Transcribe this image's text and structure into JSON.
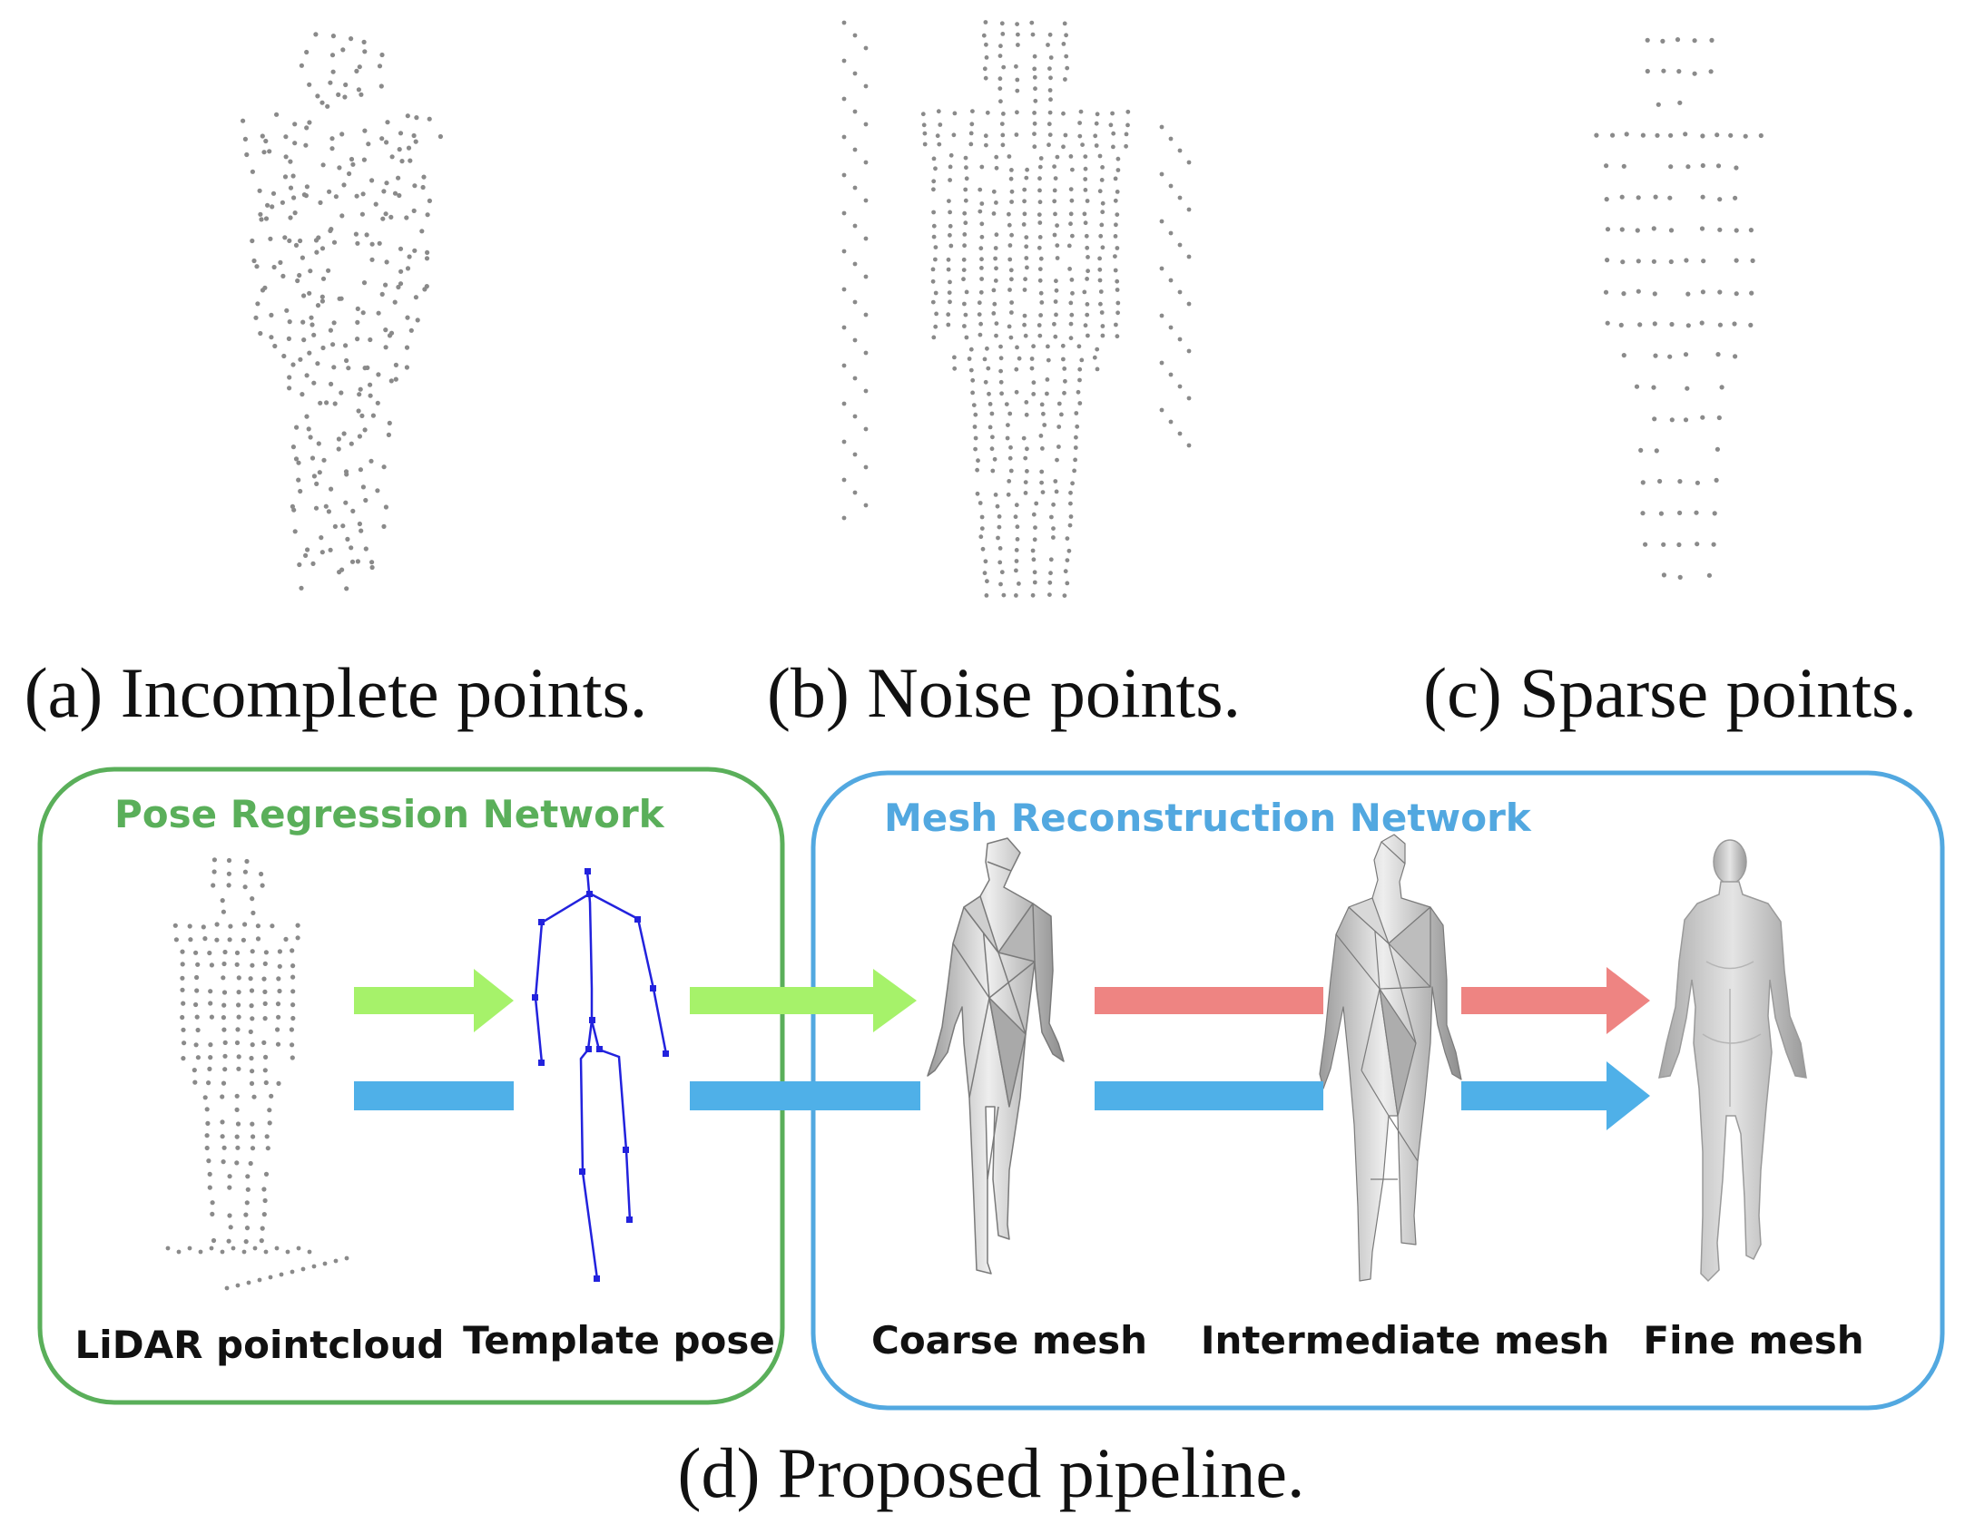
{
  "captions": {
    "a": "(a) Incomplete points.",
    "b": "(b) Noise points.",
    "c": "(c) Sparse points.",
    "d": "(d) Proposed pipeline."
  },
  "pipeline": {
    "pose_network": {
      "title": "Pose Regression Network",
      "color": "#5aaf5a"
    },
    "mesh_network": {
      "title": "Mesh Reconstruction Network",
      "color": "#52a8e0"
    },
    "stages": {
      "lidar": "LiDAR pointcloud",
      "template": "Template pose",
      "coarse": "Coarse mesh",
      "intermediate": "Intermediate mesh",
      "fine": "Fine mesh"
    },
    "arrow_colors": {
      "green": "#a6f26a",
      "blue": "#4fb0e8",
      "red": "#ee8482"
    },
    "skeleton_color": "#2222dd",
    "point_color": "#8a8a8a"
  }
}
